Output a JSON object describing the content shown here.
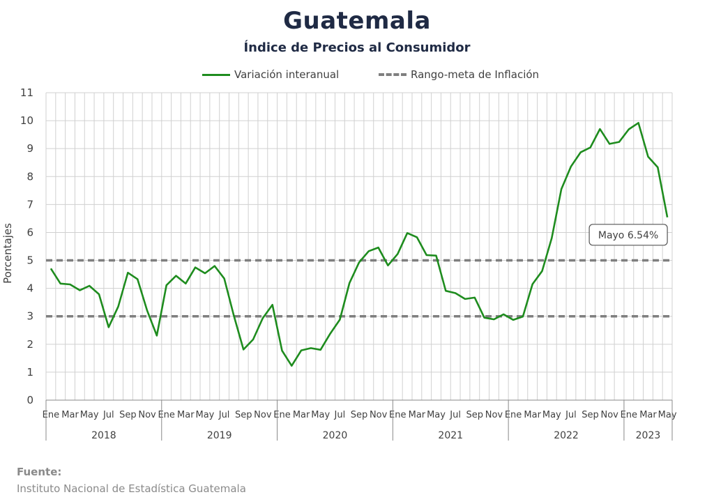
{
  "title": "Guatemala",
  "subtitle": "Índice de Precios al Consumidor",
  "legend": {
    "series_label": "Variación interanual",
    "target_label": "Rango-meta de Inflación"
  },
  "source": {
    "label": "Fuente:",
    "text": "Instituto Nacional de Estadística Guatemala"
  },
  "annotation": "Mayo 6.54%",
  "colors": {
    "series": "#1e8c1e",
    "target": "#7f7f7f",
    "grid": "#d0d0d0"
  },
  "chart_data": {
    "type": "line",
    "ylabel": "Porcentajes",
    "ylim": [
      0,
      11
    ],
    "yticks": [
      0,
      1,
      2,
      3,
      4,
      5,
      6,
      7,
      8,
      9,
      10,
      11
    ],
    "grid": true,
    "legend_position": "top",
    "x_tick_labels": [
      "Ene",
      "",
      "Mar",
      "",
      "May",
      "",
      "Jul",
      "",
      "Sep",
      "",
      "Nov",
      "",
      "Ene",
      "",
      "Mar",
      "",
      "May",
      "",
      "Jul",
      "",
      "Sep",
      "",
      "Nov",
      "",
      "Ene",
      "",
      "Mar",
      "",
      "May",
      "",
      "Jul",
      "",
      "Sep",
      "",
      "Nov",
      "",
      "Ene",
      "",
      "Mar",
      "",
      "May",
      "",
      "Jul",
      "",
      "Sep",
      "",
      "Nov",
      "",
      "Ene",
      "",
      "Mar",
      "",
      "May",
      "",
      "Jul",
      "",
      "Sep",
      "",
      "Nov",
      "",
      "Ene",
      "",
      "Mar",
      "",
      "May"
    ],
    "years": [
      {
        "label": "2018",
        "months": 12
      },
      {
        "label": "2019",
        "months": 12
      },
      {
        "label": "2020",
        "months": 12
      },
      {
        "label": "2021",
        "months": 12
      },
      {
        "label": "2022",
        "months": 12
      },
      {
        "label": "2023",
        "months": 5
      }
    ],
    "series": [
      {
        "name": "Variación interanual",
        "values": [
          4.71,
          4.17,
          4.14,
          3.93,
          4.09,
          3.79,
          2.61,
          3.35,
          4.56,
          4.33,
          3.2,
          2.31,
          4.11,
          4.45,
          4.17,
          4.75,
          4.54,
          4.8,
          4.35,
          3.02,
          1.81,
          2.17,
          2.93,
          3.41,
          1.77,
          1.23,
          1.78,
          1.86,
          1.8,
          2.38,
          2.88,
          4.19,
          4.93,
          5.33,
          5.46,
          4.82,
          5.23,
          5.98,
          5.83,
          5.19,
          5.17,
          3.91,
          3.83,
          3.62,
          3.67,
          2.95,
          2.89,
          3.07,
          2.87,
          2.99,
          4.15,
          4.62,
          5.8,
          7.55,
          8.36,
          8.87,
          9.04,
          9.7,
          9.17,
          9.24,
          9.69,
          9.92,
          8.71,
          8.33,
          6.54
        ]
      },
      {
        "name": "Rango-meta de Inflación",
        "lines": [
          5,
          3
        ]
      }
    ],
    "annotations": [
      {
        "text": "Mayo 6.54%",
        "x_index": 64,
        "y": 6.54
      }
    ]
  }
}
